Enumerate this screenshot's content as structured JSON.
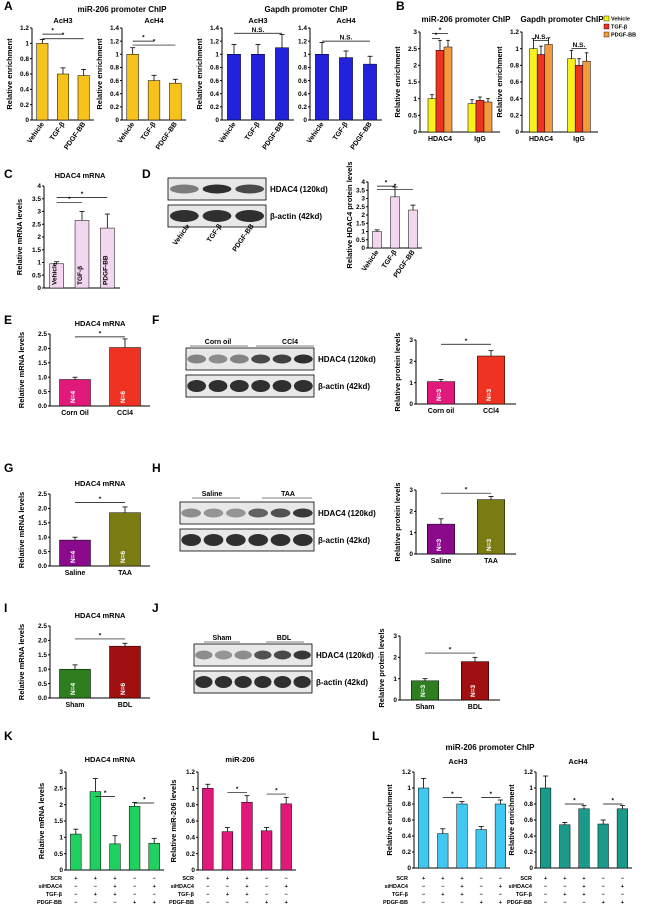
{
  "panels": [
    {
      "id": "A",
      "kind": "bar",
      "title": "miR-206 promoter ChIP",
      "subtitle": "AcH3",
      "ylabel": "Relative enrichment",
      "ylim": [
        0,
        1.2
      ],
      "yticks": [
        "0",
        "0.2",
        "0.4",
        "0.6",
        "0.8",
        "1",
        "1.2"
      ],
      "categories": [
        "Vehicle",
        "TGF-β",
        "PDGF-BB"
      ],
      "values": [
        1.0,
        0.6,
        0.58
      ],
      "errors": [
        0.05,
        0.08,
        0.08
      ],
      "colors": [
        "#f7c21c",
        "#f7c21c",
        "#f7c21c"
      ],
      "sig": [
        {
          "a": 0,
          "b": 1,
          "label": "*",
          "level": 1.12
        },
        {
          "a": 0,
          "b": 2,
          "label": "*",
          "level": 1.06
        }
      ]
    },
    {
      "id": "A2",
      "kind": "bar",
      "title": "",
      "subtitle": "AcH4",
      "ylabel": "Relative enrichment",
      "ylim": [
        0,
        1.4
      ],
      "yticks": [
        "0",
        "0.2",
        "0.4",
        "0.6",
        "0.8",
        "1",
        "1.2",
        "1.4"
      ],
      "categories": [
        "Vehicle",
        "TGF-β",
        "PDGF-BB"
      ],
      "values": [
        1.0,
        0.6,
        0.56
      ],
      "errors": [
        0.1,
        0.08,
        0.06
      ],
      "colors": [
        "#f7c21c",
        "#f7c21c",
        "#f7c21c"
      ],
      "sig": [
        {
          "a": 0,
          "b": 1,
          "label": "*",
          "level": 1.2
        },
        {
          "a": 0,
          "b": 2,
          "label": "*",
          "level": 1.14
        }
      ]
    },
    {
      "id": "A3",
      "kind": "bar",
      "title": "Gapdh promoter ChIP",
      "subtitle": "AcH3",
      "ylabel": "Relative enrichment",
      "ylim": [
        0,
        1.4
      ],
      "yticks": [
        "0",
        "0.2",
        "0.4",
        "0.6",
        "0.8",
        "1",
        "1.2",
        "1.4"
      ],
      "categories": [
        "Vehicle",
        "TGF-β",
        "PDGF-BB"
      ],
      "values": [
        1.0,
        1.0,
        1.1
      ],
      "errors": [
        0.15,
        0.15,
        0.2
      ],
      "colors": [
        "#2222dd",
        "#2222dd",
        "#2222dd"
      ],
      "sig": [
        {
          "a": 0,
          "b": 2,
          "label": "N.S.",
          "level": 1.32
        }
      ]
    },
    {
      "id": "A4",
      "kind": "bar",
      "title": "",
      "subtitle": "AcH4",
      "ylabel": "",
      "ylim": [
        0,
        1.4
      ],
      "yticks": [
        "0",
        "0.2",
        "0.4",
        "0.6",
        "0.8",
        "1",
        "1.2",
        "1.4"
      ],
      "categories": [
        "Vehicle",
        "TGF-β",
        "PDGF-BB"
      ],
      "values": [
        1.0,
        0.95,
        0.85
      ],
      "errors": [
        0.18,
        0.1,
        0.12
      ],
      "colors": [
        "#2222dd",
        "#2222dd",
        "#2222dd"
      ],
      "sig": [
        {
          "a": 0,
          "b": 2,
          "label": "N.S.",
          "level": 1.2
        }
      ]
    },
    {
      "id": "B1",
      "kind": "grouped",
      "title": "miR-206 promoter ChIP",
      "ylabel": "Relative enrichment",
      "ylim": [
        0,
        3
      ],
      "yticks": [
        "0",
        "0.5",
        "1",
        "1.5",
        "2",
        "2.5",
        "3"
      ],
      "groups": [
        "HDAC4",
        "IgG"
      ],
      "series": [
        {
          "name": "Vehicle",
          "color": "#f7f21c",
          "values": [
            1.0,
            0.85
          ],
          "errors": [
            0.12,
            0.12
          ]
        },
        {
          "name": "TGF-β",
          "color": "#ee3322",
          "values": [
            2.45,
            0.95
          ],
          "errors": [
            0.3,
            0.1
          ]
        },
        {
          "name": "PDGF-BB",
          "color": "#f59a3a",
          "values": [
            2.55,
            0.9
          ],
          "errors": [
            0.2,
            0.1
          ]
        }
      ],
      "sig": [
        {
          "a": 0,
          "b": 1,
          "label": "*",
          "level": 2.8
        },
        {
          "a": 0,
          "b": 2,
          "label": "*",
          "level": 2.95
        }
      ]
    },
    {
      "id": "B2",
      "kind": "grouped",
      "title": "Gapdh promoter ChIP",
      "ylabel": "Relative enrichment",
      "ylim": [
        0,
        1.2
      ],
      "yticks": [
        "0",
        "0.2",
        "0.4",
        "0.6",
        "0.8",
        "1",
        "1.2"
      ],
      "groups": [
        "HDAC4",
        "IgG"
      ],
      "series": [
        {
          "name": "Vehicle",
          "color": "#f7f21c",
          "values": [
            1.0,
            0.88
          ],
          "errors": [
            0.12,
            0.1
          ]
        },
        {
          "name": "TGF-β",
          "color": "#ee3322",
          "values": [
            0.93,
            0.8
          ],
          "errors": [
            0.1,
            0.08
          ]
        },
        {
          "name": "PDGF-BB",
          "color": "#f59a3a",
          "values": [
            1.05,
            0.85
          ],
          "errors": [
            0.08,
            0.1
          ]
        }
      ],
      "sig": [
        {
          "group": 0,
          "label": "N.S.",
          "level": 1.1
        },
        {
          "group": 1,
          "label": "N.S.",
          "level": 1.0
        }
      ]
    },
    {
      "id": "C",
      "kind": "bar",
      "title": "HDAC4 mRNA",
      "ylabel": "Relative mRNA levels",
      "ylim": [
        0,
        4
      ],
      "yticks": [
        "0",
        "0.5",
        "1",
        "1.5",
        "2",
        "2.5",
        "3",
        "3.5",
        "4"
      ],
      "categories": [
        "Vehicle",
        "TGF-β",
        "PDGF-BB"
      ],
      "values": [
        0.95,
        2.65,
        2.35
      ],
      "errors": [
        0.08,
        0.35,
        0.55
      ],
      "colors": [
        "#f3d7ef",
        "#f3d7ef",
        "#f3d7ef"
      ],
      "inbar": [
        "Vehicle",
        "TGF-β",
        "PDGF-BB"
      ],
      "sig": [
        {
          "a": 0,
          "b": 1,
          "label": "*",
          "level": 3.35
        },
        {
          "a": 0,
          "b": 2,
          "label": "*",
          "level": 3.55
        }
      ]
    },
    {
      "id": "D",
      "kind": "bar",
      "title": "",
      "ylabel": "Relative HDAC4 protein levels",
      "ylim": [
        0,
        4
      ],
      "yticks": [
        "0",
        "0.5",
        "1",
        "1.5",
        "2",
        "2.5",
        "3",
        "3.5",
        "4"
      ],
      "categories": [
        "Vehicle",
        "TGF-β",
        "PDGF-BB"
      ],
      "values": [
        1.0,
        3.1,
        2.3
      ],
      "errors": [
        0.1,
        0.6,
        0.3
      ],
      "colors": [
        "#f3d7ef",
        "#f3d7ef",
        "#f3d7ef"
      ],
      "sig": [
        {
          "a": 0,
          "b": 1,
          "label": "*",
          "level": 3.75
        },
        {
          "a": 0,
          "b": 2,
          "label": "*",
          "level": 3.55
        }
      ]
    },
    {
      "id": "E",
      "kind": "bar",
      "title": "HDAC4 mRNA",
      "ylabel": "Relative mRNA levels",
      "ylim": [
        0,
        2.5
      ],
      "yticks": [
        "0.0",
        "0.5",
        "1.0",
        "1.5",
        "2.0",
        "2.5"
      ],
      "categories": [
        "Corn Oil",
        "CCl4"
      ],
      "values": [
        0.92,
        2.03
      ],
      "errors": [
        0.08,
        0.3
      ],
      "colors": [
        "#e0197a",
        "#ee3322"
      ],
      "inbar": [
        "N=4",
        "N=6"
      ],
      "sig": [
        {
          "a": 0,
          "b": 1,
          "label": "*",
          "level": 2.4
        }
      ]
    },
    {
      "id": "F",
      "kind": "bar",
      "title": "",
      "ylabel": "Relative protein levels",
      "ylim": [
        0,
        3
      ],
      "yticks": [
        "0",
        "1",
        "2",
        "3"
      ],
      "categories": [
        "Corn oil",
        "CCl4"
      ],
      "values": [
        1.05,
        2.25
      ],
      "errors": [
        0.1,
        0.25
      ],
      "colors": [
        "#e0197a",
        "#ee3322"
      ],
      "inbar": [
        "N=3",
        "N=3"
      ],
      "sig": [
        {
          "a": 0,
          "b": 1,
          "label": "*",
          "level": 2.8
        }
      ]
    },
    {
      "id": "G",
      "kind": "bar",
      "title": "HDAC4 mRNA",
      "ylabel": "Relative mRNA levels",
      "ylim": [
        0,
        2.5
      ],
      "yticks": [
        "0.0",
        "0.5",
        "1.0",
        "1.5",
        "2.0",
        "2.5"
      ],
      "categories": [
        "Saline",
        "TAA"
      ],
      "values": [
        0.9,
        1.85
      ],
      "errors": [
        0.1,
        0.2
      ],
      "colors": [
        "#8b0a8b",
        "#7b7b14"
      ],
      "inbar": [
        "N=4",
        "N=6"
      ],
      "sig": [
        {
          "a": 0,
          "b": 1,
          "label": "*",
          "level": 2.2
        }
      ]
    },
    {
      "id": "H",
      "kind": "bar",
      "title": "",
      "ylabel": "Relative protein levels",
      "ylim": [
        0,
        3
      ],
      "yticks": [
        "0",
        "1",
        "2",
        "3"
      ],
      "categories": [
        "Saline",
        "TAA"
      ],
      "values": [
        1.4,
        2.55
      ],
      "errors": [
        0.25,
        0.15
      ],
      "colors": [
        "#8b0a8b",
        "#7b7b14"
      ],
      "inbar": [
        "N=3",
        "N=3"
      ],
      "sig": [
        {
          "a": 0,
          "b": 1,
          "label": "*",
          "level": 2.85
        }
      ]
    },
    {
      "id": "I",
      "kind": "bar",
      "title": "HDAC4 mRNA",
      "ylabel": "Relative mRNA levels",
      "ylim": [
        0,
        2.5
      ],
      "yticks": [
        "0.0",
        "0.5",
        "1.0",
        "1.5",
        "2.0",
        "2.5"
      ],
      "categories": [
        "Sham",
        "BDL"
      ],
      "values": [
        1.0,
        1.8
      ],
      "errors": [
        0.15,
        0.1
      ],
      "colors": [
        "#2e7d1e",
        "#a01010"
      ],
      "inbar": [
        "N=4",
        "N=6"
      ],
      "sig": [
        {
          "a": 0,
          "b": 1,
          "label": "*",
          "level": 2.05
        }
      ]
    },
    {
      "id": "J",
      "kind": "bar",
      "title": "",
      "ylabel": "Relative protein levels",
      "ylim": [
        0,
        3
      ],
      "yticks": [
        "0",
        "1",
        "2",
        "3"
      ],
      "categories": [
        "Sham",
        "BDL"
      ],
      "values": [
        0.9,
        1.8
      ],
      "errors": [
        0.1,
        0.2
      ],
      "colors": [
        "#2e7d1e",
        "#a01010"
      ],
      "inbar": [
        "N=3",
        "N=3"
      ],
      "sig": [
        {
          "a": 0,
          "b": 1,
          "label": "*",
          "level": 2.2
        }
      ]
    },
    {
      "id": "K1",
      "kind": "bar5",
      "title": "HDAC4 mRNA",
      "ylabel": "Relative mRNA levels",
      "ylim": [
        0,
        3
      ],
      "yticks": [
        "0",
        "0.5",
        "1",
        "1.5",
        "2",
        "2.5",
        "3"
      ],
      "values": [
        1.1,
        2.4,
        0.8,
        1.95,
        0.82
      ],
      "errors": [
        0.15,
        0.4,
        0.25,
        0.12,
        0.15
      ],
      "color": "#20d060",
      "sig": [
        {
          "a": 1,
          "b": 2,
          "label": "*",
          "level": 2.25
        },
        {
          "a": 3,
          "b": 4,
          "label": "*",
          "level": 2.05
        }
      ]
    },
    {
      "id": "K2",
      "kind": "bar5",
      "title": "miR-206",
      "ylabel": "Relative miR-206 levels",
      "ylim": [
        0,
        1.2
      ],
      "yticks": [
        "0",
        "0.2",
        "0.4",
        "0.6",
        "0.8",
        "1",
        "1.2"
      ],
      "values": [
        1.0,
        0.47,
        0.83,
        0.48,
        0.81
      ],
      "errors": [
        0.05,
        0.05,
        0.08,
        0.04,
        0.08
      ],
      "color": "#e0197a",
      "sig": [
        {
          "a": 1,
          "b": 2,
          "label": "*",
          "level": 0.95
        },
        {
          "a": 3,
          "b": 4,
          "label": "*",
          "level": 0.93
        }
      ]
    },
    {
      "id": "L1",
      "kind": "bar5",
      "title": "AcH3",
      "ylabel": "Relative enrichment",
      "ylim": [
        0,
        1.2
      ],
      "yticks": [
        "0",
        "0.2",
        "0.4",
        "0.6",
        "0.8",
        "1",
        "1.2"
      ],
      "values": [
        1.0,
        0.43,
        0.8,
        0.48,
        0.8
      ],
      "errors": [
        0.12,
        0.06,
        0.03,
        0.04,
        0.05
      ],
      "color": "#40c8f0",
      "sig": [
        {
          "a": 1,
          "b": 2,
          "label": "*",
          "level": 0.88
        },
        {
          "a": 3,
          "b": 4,
          "label": "*",
          "level": 0.88
        }
      ]
    },
    {
      "id": "L2",
      "kind": "bar5",
      "title": "AcH4",
      "ylabel": "Relative enrichment",
      "ylim": [
        0,
        1.2
      ],
      "yticks": [
        "0",
        "0.2",
        "0.4",
        "0.6",
        "0.8",
        "1",
        "1.2"
      ],
      "values": [
        1.0,
        0.54,
        0.74,
        0.55,
        0.74
      ],
      "errors": [
        0.15,
        0.03,
        0.04,
        0.05,
        0.04
      ],
      "color": "#1a9a8a",
      "sig": [
        {
          "a": 1,
          "b": 2,
          "label": "*",
          "level": 0.8
        },
        {
          "a": 3,
          "b": 4,
          "label": "*",
          "level": 0.8
        }
      ]
    }
  ],
  "labels": {
    "panel_letters": [
      "A",
      "B",
      "C",
      "D",
      "E",
      "F",
      "G",
      "H",
      "I",
      "J",
      "K",
      "L"
    ],
    "A_title1": "miR-206 promoter ChIP",
    "A_title2": "Gapdh promoter ChIP",
    "B_title1": "miR-206 promoter ChIP",
    "B_title2": "Gapdh promoter ChIP",
    "L_title": "miR-206 promoter ChIP",
    "legend": [
      "Vehicle",
      "TGF-β",
      "PDGF-BB"
    ],
    "blot_hdac4": "HDAC4 (120kd)",
    "blot_actin": "β-actin (42kd)",
    "lanes_D": [
      "Vehicle",
      "TGF-β",
      "PDGF-BB"
    ],
    "group_F": [
      "Corn oil",
      "CCl4"
    ],
    "group_H": [
      "Saline",
      "TAA"
    ],
    "group_J": [
      "Sham",
      "BDL"
    ],
    "treat_rows": [
      "SCR",
      "siHDAC4",
      "TGF-β",
      "PDGF-BB"
    ],
    "treat_signs": [
      [
        "+",
        "+",
        "+",
        "−",
        "−"
      ],
      [
        "−",
        "−",
        "+",
        "−",
        "+"
      ],
      [
        "−",
        "+",
        "+",
        "−",
        "−"
      ],
      [
        "−",
        "−",
        "−",
        "+",
        "+"
      ]
    ]
  }
}
